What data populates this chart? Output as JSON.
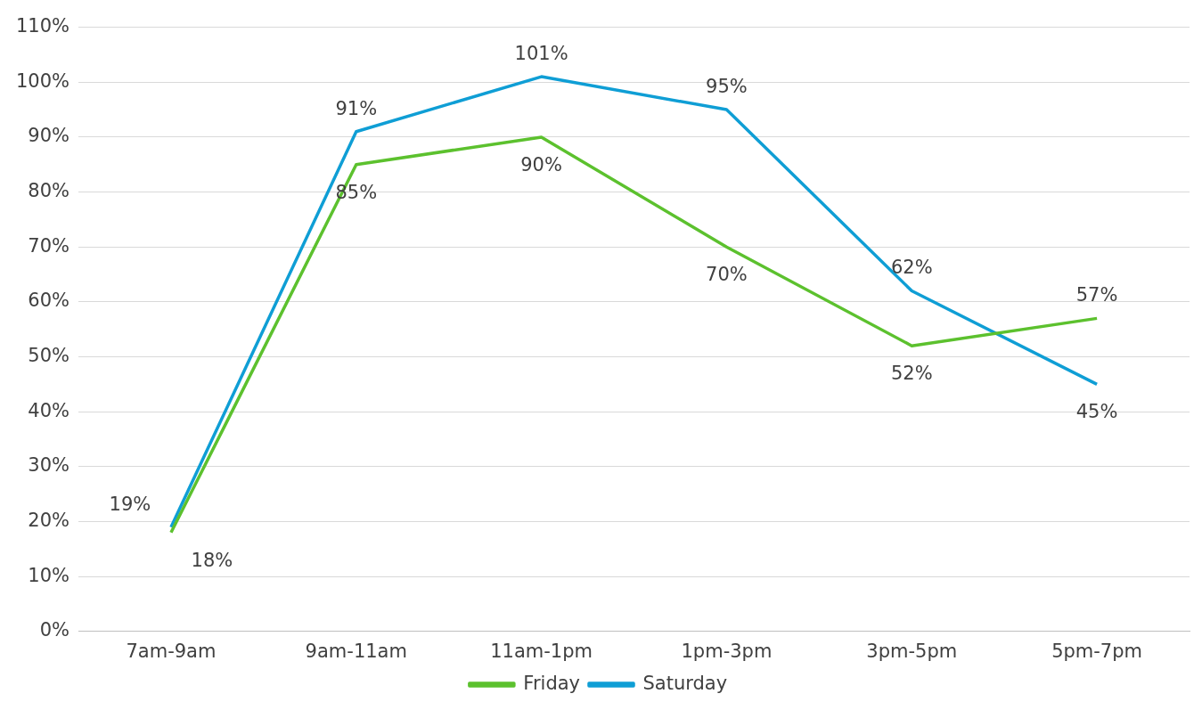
{
  "chart_data": {
    "type": "line",
    "categories": [
      "7am-9am",
      "9am-11am",
      "11am-1pm",
      "1pm-3pm",
      "3pm-5pm",
      "5pm-7pm"
    ],
    "series": [
      {
        "name": "Friday",
        "color": "#5cc12e",
        "values": [
          18,
          85,
          90,
          70,
          52,
          57
        ],
        "value_labels": [
          "18%",
          "85%",
          "90%",
          "70%",
          "52%",
          "57%"
        ]
      },
      {
        "name": "Saturday",
        "color": "#0f9ed5",
        "values": [
          19,
          91,
          101,
          95,
          62,
          45
        ],
        "value_labels": [
          "19%",
          "91%",
          "101%",
          "95%",
          "62%",
          "45%"
        ]
      }
    ],
    "ylim": [
      0,
      110
    ],
    "yticks": [
      {
        "value": 0,
        "label": "0%"
      },
      {
        "value": 10,
        "label": "10%"
      },
      {
        "value": 20,
        "label": "20%"
      },
      {
        "value": 30,
        "label": "30%"
      },
      {
        "value": 40,
        "label": "40%"
      },
      {
        "value": 50,
        "label": "50%"
      },
      {
        "value": 60,
        "label": "60%"
      },
      {
        "value": 70,
        "label": "70%"
      },
      {
        "value": 80,
        "label": "80%"
      },
      {
        "value": 90,
        "label": "90%"
      },
      {
        "value": 100,
        "label": "100%"
      },
      {
        "value": 110,
        "label": "110%"
      }
    ],
    "grid": "y",
    "legend": "bottom",
    "marker": "none",
    "line_style": "solid"
  }
}
